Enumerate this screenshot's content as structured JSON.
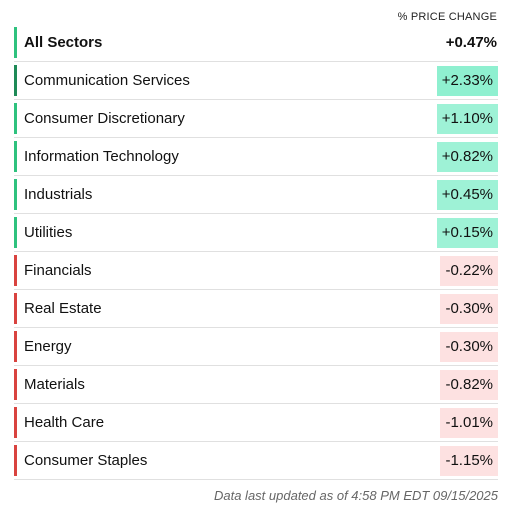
{
  "header": {
    "column_label": "% PRICE CHANGE"
  },
  "sectors": [
    {
      "name": "All Sectors",
      "change": "+0.47%",
      "bar_color": "#2ec27e",
      "bg_color": "transparent",
      "total": true
    },
    {
      "name": "Communication Services",
      "change": "+2.33%",
      "bar_color": "#1e8a57",
      "bg_color": "#8ff0d0",
      "total": false
    },
    {
      "name": "Consumer Discretionary",
      "change": "+1.10%",
      "bar_color": "#2ec27e",
      "bg_color": "#9ef2d6",
      "total": false
    },
    {
      "name": "Information Technology",
      "change": "+0.82%",
      "bar_color": "#2ec27e",
      "bg_color": "#9ef2d6",
      "total": false
    },
    {
      "name": "Industrials",
      "change": "+0.45%",
      "bar_color": "#2ec27e",
      "bg_color": "#9ef2d6",
      "total": false
    },
    {
      "name": "Utilities",
      "change": "+0.15%",
      "bar_color": "#2ec27e",
      "bg_color": "#9ef2d6",
      "total": false
    },
    {
      "name": "Financials",
      "change": "-0.22%",
      "bar_color": "#d9433f",
      "bg_color": "#fde1e1",
      "total": false
    },
    {
      "name": "Real Estate",
      "change": "-0.30%",
      "bar_color": "#d9433f",
      "bg_color": "#fde1e1",
      "total": false
    },
    {
      "name": "Energy",
      "change": "-0.30%",
      "bar_color": "#d9433f",
      "bg_color": "#fde1e1",
      "total": false
    },
    {
      "name": "Materials",
      "change": "-0.82%",
      "bar_color": "#d9433f",
      "bg_color": "#fde1e1",
      "total": false
    },
    {
      "name": "Health Care",
      "change": "-1.01%",
      "bar_color": "#d9433f",
      "bg_color": "#fde1e1",
      "total": false
    },
    {
      "name": "Consumer Staples",
      "change": "-1.15%",
      "bar_color": "#d9433f",
      "bg_color": "#fde1e1",
      "total": false
    }
  ],
  "footer": {
    "note": "Data last updated as of 4:58 PM EDT 09/15/2025"
  }
}
